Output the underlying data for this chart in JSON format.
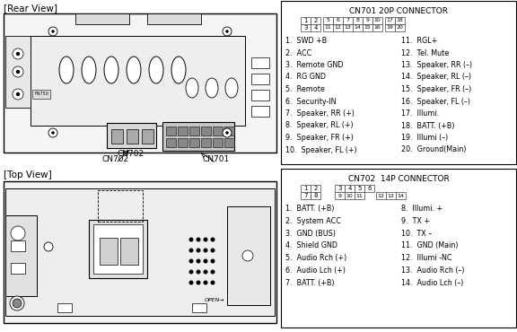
{
  "bg_color": "#ffffff",
  "rear_view_label": "[Rear View]",
  "top_view_label": "[Top View]",
  "cn701_label": "CN701",
  "cn702_label": "CN702",
  "cn701_title": "CN701 20P CONNECTOR",
  "cn702_title": "CN702  14P CONNECTOR",
  "cn701_items_left": [
    "1.  SWD +B",
    "2.  ACC",
    "3.  Remote GND",
    "4.  RG GND",
    "5.  Remote",
    "6.  Security-IN",
    "7.  Speaker, RR (+)",
    "8.  Speaker, RL (+)",
    "9.  Speaker, FR (+)",
    "10.  Speaker, FL (+)"
  ],
  "cn701_items_right": [
    "11.  RGL+",
    "12.  Tel. Mute",
    "13.  Speaker, RR (–)",
    "14.  Speaker, RL (–)",
    "15.  Speaker, FR (–)",
    "16.  Speaker, FL (–)",
    "17.  Illumi.",
    "18.  BATT. (+B)",
    "19.  Illumi (–)",
    "20.  Ground(Main)"
  ],
  "cn702_items_left": [
    "1.  BATT. (+B)",
    "2.  System ACC",
    "3.  GND (BUS)",
    "4.  Shield GND",
    "5.  Audio Rch (+)",
    "6.  Audio Lch (+)",
    "7.  BATT. (+B)"
  ],
  "cn702_items_right": [
    "8.  Illumi. +",
    "9.  TX +",
    "10.  TX –",
    "11.  GND (Main)",
    "12.  Illumi -NC",
    "13.  Audio Rch (–)",
    "14.  Audio Lch (–)"
  ]
}
